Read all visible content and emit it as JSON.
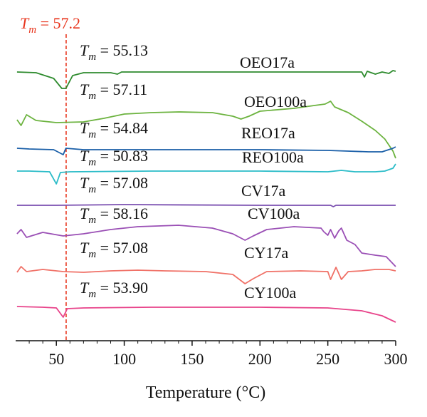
{
  "chart_data": {
    "type": "line",
    "title": "",
    "xlabel": "Temperature (°C)",
    "ylabel": "",
    "xlim": [
      20,
      300
    ],
    "x_ticks": [
      "50",
      "100",
      "150",
      "200",
      "250",
      "300"
    ],
    "x_tick_values": [
      50,
      100,
      150,
      200,
      250,
      300
    ],
    "y_ticks": false,
    "grid": false,
    "reference_line": {
      "x": 57.2,
      "label_prefix": "T",
      "label_sub": "m",
      "label_suffix": " = 57.2",
      "color": "#e8341c",
      "style": "dashed"
    },
    "series": [
      {
        "name": "OEO17a",
        "tm_value": "55.13",
        "color": "#2e8b2e",
        "points": [
          [
            21,
            101
          ],
          [
            35,
            102
          ],
          [
            48,
            110
          ],
          [
            54,
            124
          ],
          [
            57,
            124
          ],
          [
            62,
            106
          ],
          [
            70,
            102
          ],
          [
            90,
            102
          ],
          [
            95,
            104
          ],
          [
            98,
            101
          ],
          [
            120,
            101
          ],
          [
            200,
            101
          ],
          [
            275,
            101
          ],
          [
            277,
            108
          ],
          [
            279,
            100
          ],
          [
            285,
            104
          ],
          [
            290,
            101
          ],
          [
            295,
            103
          ],
          [
            298,
            99
          ],
          [
            300,
            100
          ]
        ]
      },
      {
        "name": "OEO100a",
        "tm_value": "57.11",
        "color": "#6cb33f",
        "points": [
          [
            21,
            168
          ],
          [
            24,
            176
          ],
          [
            28,
            161
          ],
          [
            35,
            169
          ],
          [
            50,
            172
          ],
          [
            70,
            171
          ],
          [
            85,
            166
          ],
          [
            100,
            160
          ],
          [
            120,
            158
          ],
          [
            140,
            157
          ],
          [
            165,
            158
          ],
          [
            180,
            163
          ],
          [
            186,
            167
          ],
          [
            192,
            163
          ],
          [
            200,
            156
          ],
          [
            225,
            152
          ],
          [
            240,
            148
          ],
          [
            248,
            146
          ],
          [
            252,
            142
          ],
          [
            255,
            150
          ],
          [
            265,
            158
          ],
          [
            275,
            170
          ],
          [
            285,
            183
          ],
          [
            292,
            195
          ],
          [
            298,
            212
          ],
          [
            300,
            222
          ]
        ]
      },
      {
        "name": "REO17a",
        "tm_value": "54.84",
        "color": "#1a5fa8",
        "points": [
          [
            21,
            208
          ],
          [
            30,
            209
          ],
          [
            48,
            210
          ],
          [
            55,
            217
          ],
          [
            57,
            208
          ],
          [
            70,
            210
          ],
          [
            120,
            210
          ],
          [
            200,
            210
          ],
          [
            250,
            211
          ],
          [
            265,
            212
          ],
          [
            280,
            213
          ],
          [
            290,
            213
          ],
          [
            298,
            208
          ],
          [
            300,
            206
          ]
        ]
      },
      {
        "name": "REO100a",
        "tm_value": "50.83",
        "color": "#2bbcc8",
        "points": [
          [
            21,
            240
          ],
          [
            30,
            240
          ],
          [
            45,
            241
          ],
          [
            50,
            258
          ],
          [
            53,
            242
          ],
          [
            60,
            241
          ],
          [
            120,
            240
          ],
          [
            200,
            240
          ],
          [
            250,
            241
          ],
          [
            260,
            239
          ],
          [
            270,
            241
          ],
          [
            285,
            241
          ],
          [
            292,
            240
          ],
          [
            298,
            236
          ],
          [
            300,
            230
          ]
        ]
      },
      {
        "name": "CV17a",
        "tm_value": "57.08",
        "color": "#7a4fb0",
        "points": [
          [
            21,
            288
          ],
          [
            50,
            288
          ],
          [
            100,
            287
          ],
          [
            200,
            288
          ],
          [
            252,
            288
          ],
          [
            254,
            290
          ],
          [
            256,
            288
          ],
          [
            270,
            288
          ],
          [
            300,
            288
          ]
        ]
      },
      {
        "name": "CV100a",
        "tm_value": "58.16",
        "color": "#9a4fb5",
        "points": [
          [
            21,
            328
          ],
          [
            24,
            322
          ],
          [
            28,
            333
          ],
          [
            40,
            326
          ],
          [
            55,
            331
          ],
          [
            70,
            328
          ],
          [
            90,
            322
          ],
          [
            110,
            318
          ],
          [
            140,
            316
          ],
          [
            165,
            320
          ],
          [
            180,
            328
          ],
          [
            189,
            337
          ],
          [
            195,
            331
          ],
          [
            205,
            322
          ],
          [
            225,
            318
          ],
          [
            245,
            320
          ],
          [
            247,
            325
          ],
          [
            250,
            330
          ],
          [
            252,
            322
          ],
          [
            255,
            334
          ],
          [
            258,
            324
          ],
          [
            260,
            320
          ],
          [
            264,
            337
          ],
          [
            270,
            343
          ],
          [
            275,
            355
          ],
          [
            285,
            358
          ],
          [
            293,
            360
          ],
          [
            297,
            368
          ],
          [
            300,
            374
          ]
        ]
      },
      {
        "name": "CY17a",
        "tm_value": "57.08",
        "color": "#f07167",
        "points": [
          [
            21,
            382
          ],
          [
            24,
            374
          ],
          [
            28,
            381
          ],
          [
            40,
            378
          ],
          [
            55,
            381
          ],
          [
            70,
            382
          ],
          [
            90,
            380
          ],
          [
            110,
            379
          ],
          [
            130,
            380
          ],
          [
            160,
            381
          ],
          [
            180,
            385
          ],
          [
            189,
            398
          ],
          [
            195,
            391
          ],
          [
            205,
            381
          ],
          [
            230,
            380
          ],
          [
            250,
            381
          ],
          [
            252,
            392
          ],
          [
            256,
            375
          ],
          [
            260,
            392
          ],
          [
            265,
            381
          ],
          [
            275,
            380
          ],
          [
            285,
            378
          ],
          [
            295,
            378
          ],
          [
            300,
            380
          ]
        ]
      },
      {
        "name": "CY100a",
        "tm_value": "53.90",
        "color": "#e8438a",
        "points": [
          [
            21,
            430
          ],
          [
            40,
            431
          ],
          [
            50,
            432
          ],
          [
            55,
            445
          ],
          [
            58,
            433
          ],
          [
            70,
            432
          ],
          [
            120,
            431
          ],
          [
            200,
            431
          ],
          [
            250,
            432
          ],
          [
            275,
            436
          ],
          [
            290,
            443
          ],
          [
            300,
            452
          ]
        ]
      }
    ]
  }
}
